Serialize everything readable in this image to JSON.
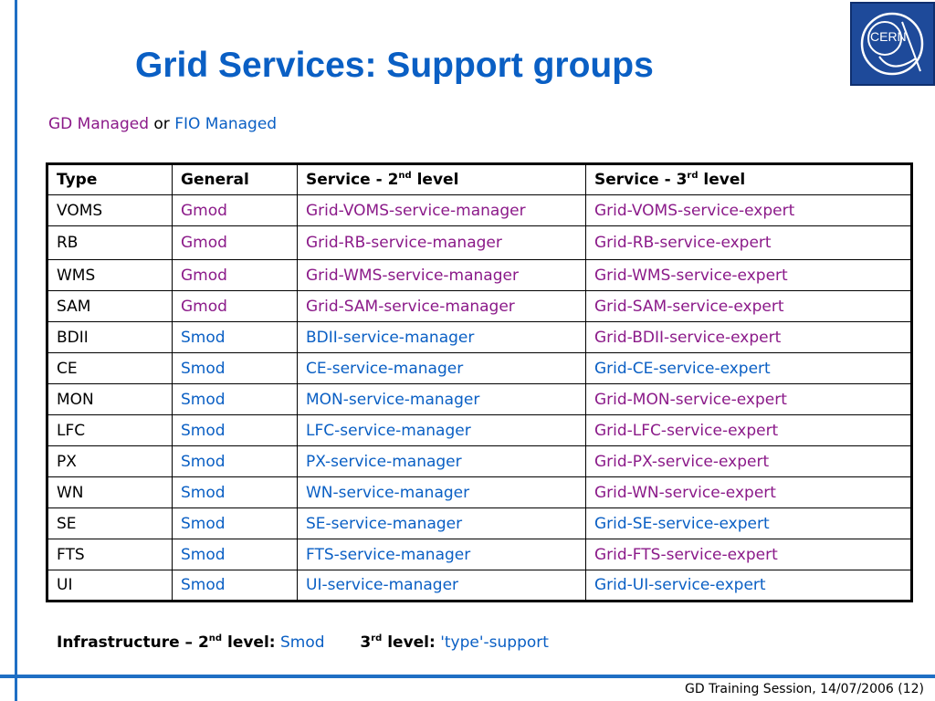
{
  "title": "Grid Services: Support groups",
  "subtitle": {
    "gd": "GD Managed",
    "or": "or",
    "fio": "FIO Managed"
  },
  "table": {
    "headers": [
      {
        "text": "Type"
      },
      {
        "text": "General"
      },
      {
        "text": "Service - 2",
        "sup": "nd",
        "after": " level"
      },
      {
        "text": "Service - 3",
        "sup": "rd",
        "after": " level"
      }
    ],
    "rows": [
      {
        "type": "VOMS",
        "general": "Gmod",
        "second": "Grid-VOMS-service-manager",
        "third": "Grid-VOMS-service-expert"
      },
      {
        "type": "RB",
        "general": "Gmod",
        "second": "Grid-RB-service-manager",
        "third": "Grid-RB-service-expert"
      },
      {
        "type": "WMS",
        "general": "Gmod",
        "second": "Grid-WMS-service-manager",
        "third": "Grid-WMS-service-expert"
      },
      {
        "type": "SAM",
        "general": "Gmod",
        "second": "Grid-SAM-service-manager",
        "third": "Grid-SAM-service-expert"
      },
      {
        "type": "BDII",
        "general": "Smod",
        "second": "BDII-service-manager",
        "third": "Grid-BDII-service-expert"
      },
      {
        "type": "CE",
        "general": "Smod",
        "second": "CE-service-manager",
        "third": "Grid-CE-service-expert"
      },
      {
        "type": "MON",
        "general": "Smod",
        "second": "MON-service-manager",
        "third": "Grid-MON-service-expert"
      },
      {
        "type": "LFC",
        "general": "Smod",
        "second": "LFC-service-manager",
        "third": "Grid-LFC-service-expert"
      },
      {
        "type": "PX",
        "general": "Smod",
        "second": "PX-service-manager",
        "third": "Grid-PX-service-expert"
      },
      {
        "type": "WN",
        "general": "Smod",
        "second": "WN-service-manager",
        "third": "Grid-WN-service-expert"
      },
      {
        "type": "SE",
        "general": "Smod",
        "second": "SE-service-manager",
        "third": "Grid-SE-service-expert"
      },
      {
        "type": "FTS",
        "general": "Smod",
        "second": "FTS-service-manager",
        "third": "Grid-FTS-service-expert"
      },
      {
        "type": "UI",
        "general": "Smod",
        "second": "UI-service-manager",
        "third": "Grid-UI-service-expert"
      }
    ]
  },
  "note": {
    "infra_label": "Infrastructure – 2",
    "infra_sup": "nd",
    "infra_label_end": " level:",
    "infra_value": "Smod",
    "third_label": "3",
    "third_sup": "rd",
    "third_label_end": " level:",
    "third_value": "'type'-support"
  },
  "footer": "GD Training Session, 14/07/2006 (12)",
  "logo": {
    "text": "CERN",
    "icon": "cern-logo"
  },
  "colors": {
    "title": "#0a5fc4",
    "gd": "#8b1a89",
    "fio": "#0a5fc4",
    "rule": "#1f6fc4",
    "logo": "#1e4a9a"
  }
}
